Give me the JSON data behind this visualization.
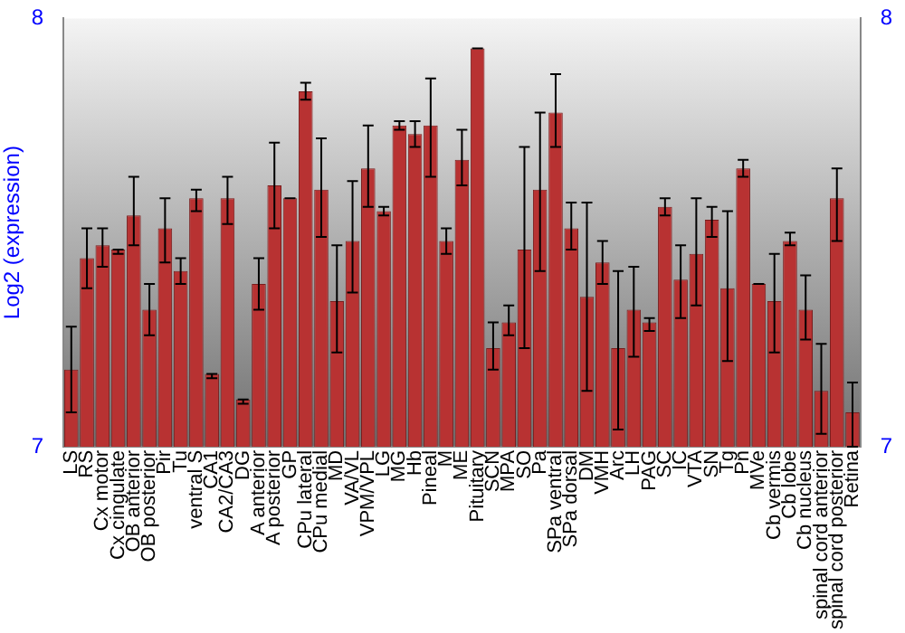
{
  "chart_data": {
    "type": "bar",
    "ylabel": "Log2 (expression)",
    "categories": [
      "LS",
      "RS",
      "Cx motor",
      "Cx cingulate",
      "OB anterior",
      "OB posterior",
      "Pir",
      "Tu",
      "ventral S",
      "CA1",
      "CA2/CA3",
      "DG",
      "A anterior",
      "A posterior",
      "GP",
      "CPu lateral",
      "CPu medial",
      "MD",
      "VA/VL",
      "VPM/VPL",
      "LG",
      "MG",
      "Hb",
      "Pineal",
      "M",
      "ME",
      "Pituitary",
      "SCN",
      "MPA",
      "SO",
      "Pa",
      "SPa ventral",
      "SPa dorsal",
      "DM",
      "VMH",
      "Arc",
      "LH",
      "PAG",
      "SC",
      "IC",
      "VTA",
      "SN",
      "Tg",
      "Pn",
      "MVe",
      "Cb vermis",
      "Cb lobe",
      "Cb nucleus",
      "spinal cord anterior",
      "spinal cord posterior",
      "Retina"
    ],
    "values": [
      7.18,
      7.44,
      7.47,
      7.46,
      7.54,
      7.32,
      7.51,
      7.41,
      7.58,
      7.17,
      7.58,
      7.11,
      7.38,
      7.61,
      7.58,
      7.83,
      7.6,
      7.34,
      7.48,
      7.65,
      7.55,
      7.75,
      7.73,
      7.75,
      7.48,
      7.67,
      7.93,
      7.23,
      7.29,
      7.46,
      7.6,
      7.78,
      7.51,
      7.35,
      7.43,
      7.23,
      7.32,
      7.29,
      7.56,
      7.39,
      7.45,
      7.53,
      7.37,
      7.65,
      7.38,
      7.34,
      7.48,
      7.32,
      7.13,
      7.58,
      7.08
    ],
    "errors": [
      [
        7.08,
        7.28
      ],
      [
        7.37,
        7.51
      ],
      [
        7.42,
        7.51
      ],
      [
        7.45,
        7.46
      ],
      [
        7.47,
        7.63
      ],
      [
        7.26,
        7.38
      ],
      [
        7.43,
        7.58
      ],
      [
        7.38,
        7.44
      ],
      [
        7.55,
        7.6
      ],
      [
        7.16,
        7.17
      ],
      [
        7.52,
        7.63
      ],
      [
        7.1,
        7.11
      ],
      [
        7.32,
        7.44
      ],
      [
        7.51,
        7.71
      ],
      [
        7.58,
        7.58
      ],
      [
        7.81,
        7.85
      ],
      [
        7.49,
        7.72
      ],
      [
        7.22,
        7.47
      ],
      [
        7.36,
        7.62
      ],
      [
        7.56,
        7.75
      ],
      [
        7.54,
        7.56
      ],
      [
        7.74,
        7.76
      ],
      [
        7.7,
        7.76
      ],
      [
        7.63,
        7.86
      ],
      [
        7.45,
        7.51
      ],
      [
        7.61,
        7.74
      ],
      [
        7.93,
        7.93
      ],
      [
        7.18,
        7.29
      ],
      [
        7.26,
        7.33
      ],
      [
        7.23,
        7.7
      ],
      [
        7.41,
        7.78
      ],
      [
        7.7,
        7.87
      ],
      [
        7.46,
        7.57
      ],
      [
        7.13,
        7.57
      ],
      [
        7.38,
        7.48
      ],
      [
        7.04,
        7.41
      ],
      [
        7.21,
        7.42
      ],
      [
        7.27,
        7.3
      ],
      [
        7.54,
        7.58
      ],
      [
        7.3,
        7.47
      ],
      [
        7.33,
        7.58
      ],
      [
        7.49,
        7.56
      ],
      [
        7.2,
        7.55
      ],
      [
        7.63,
        7.67
      ],
      [
        7.38,
        7.38
      ],
      [
        7.22,
        7.45
      ],
      [
        7.47,
        7.5
      ],
      [
        7.25,
        7.4
      ],
      [
        7.03,
        7.24
      ],
      [
        7.48,
        7.65
      ],
      [
        7.0,
        7.15
      ]
    ],
    "color": "#b83232",
    "ylim": [
      7,
      8
    ],
    "yticks": [
      7,
      8
    ],
    "y2lim": [
      7,
      8
    ],
    "y2ticks": [
      7,
      8
    ],
    "grid": false,
    "legend": false
  }
}
